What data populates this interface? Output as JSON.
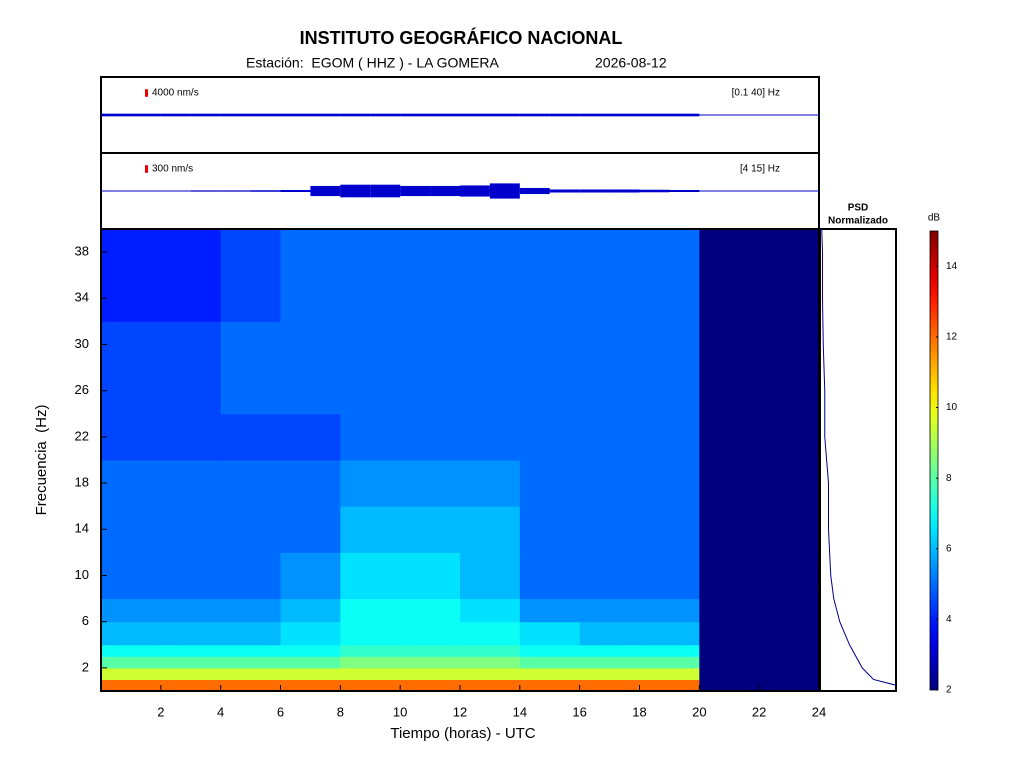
{
  "title": "INSTITUTO GEOGRÁFICO NACIONAL",
  "station": "Estación:  EGOM ( HHZ ) - LA GOMERA",
  "date": "2026-08-12",
  "chart_data": [
    {
      "type": "trace",
      "scale": {
        "value": 4000,
        "label": "4000 nm/s"
      },
      "filter": "[0.1 40] Hz",
      "color": "#0000cc",
      "xlim": [
        0,
        24
      ],
      "ylim": [
        -20000,
        20000
      ],
      "x": [
        0,
        1,
        2,
        3,
        4,
        5,
        6,
        7,
        8,
        9,
        10,
        11,
        12,
        13,
        14,
        15,
        16,
        17,
        18,
        19
      ],
      "values": [
        700,
        700,
        700,
        700,
        700,
        700,
        700,
        700,
        700,
        700,
        700,
        700,
        700,
        700,
        700,
        700,
        700,
        700,
        700,
        700
      ]
    },
    {
      "type": "trace",
      "scale": {
        "value": 300,
        "label": "300 nm/s"
      },
      "filter": "[4 15] Hz",
      "color": "#0000cc",
      "xlim": [
        0,
        24
      ],
      "ylim": [
        -1500,
        1500
      ],
      "x": [
        0,
        1,
        2,
        3,
        4,
        5,
        6,
        7,
        8,
        9,
        10,
        11,
        12,
        13,
        14,
        15,
        16,
        17,
        18,
        19
      ],
      "values": [
        20,
        20,
        20,
        25,
        25,
        30,
        40,
        200,
        250,
        250,
        200,
        200,
        220,
        300,
        120,
        60,
        60,
        60,
        50,
        40
      ]
    },
    {
      "type": "heatmap",
      "xlabel": "Tiempo (horas) - UTC",
      "ylabel": "Frecuencia  (Hz)",
      "xlim": [
        0,
        24
      ],
      "xticks": [
        2,
        4,
        6,
        8,
        10,
        12,
        14,
        16,
        18,
        20,
        22,
        24
      ],
      "ylim": [
        0,
        40
      ],
      "yticks": [
        2,
        6,
        10,
        14,
        18,
        22,
        26,
        30,
        34,
        38
      ],
      "colormap": "jet",
      "missing_color": "#00007f",
      "x_bins": [
        0,
        2,
        4,
        6,
        8,
        10,
        12,
        14,
        16,
        18,
        20,
        22,
        24
      ],
      "y_bins": [
        0,
        1,
        2,
        3,
        4,
        6,
        8,
        12,
        16,
        20,
        24,
        32,
        40
      ],
      "values": [
        [
          12,
          12,
          12,
          12,
          12,
          12,
          12,
          12,
          12,
          12,
          null,
          null
        ],
        [
          9.5,
          9.5,
          9.5,
          9.5,
          9.5,
          9.5,
          9.5,
          9.5,
          9.5,
          9.5,
          null,
          null
        ],
        [
          8,
          8,
          8,
          8,
          8.5,
          8.5,
          8.5,
          8,
          8,
          8,
          null,
          null
        ],
        [
          7,
          7,
          7,
          7,
          7.5,
          7.5,
          7.5,
          7,
          7,
          7,
          null,
          null
        ],
        [
          6,
          6,
          6,
          6.5,
          7,
          7,
          7,
          6.5,
          6,
          6,
          null,
          null
        ],
        [
          5.5,
          5.5,
          5.5,
          6,
          7,
          7,
          6.5,
          5.5,
          5.5,
          5.5,
          null,
          null
        ],
        [
          5,
          5,
          5,
          5.5,
          6.5,
          6.5,
          6,
          5,
          5,
          5,
          null,
          null
        ],
        [
          5,
          5,
          5,
          5,
          6,
          6,
          6,
          5,
          5,
          5,
          null,
          null
        ],
        [
          5,
          5,
          5,
          5,
          5.5,
          5.5,
          5.5,
          5,
          5,
          5,
          null,
          null
        ],
        [
          4.5,
          4.5,
          4.5,
          4.5,
          5,
          5,
          5,
          5,
          5,
          5,
          null,
          null
        ],
        [
          4.5,
          4.5,
          5,
          5,
          5,
          5,
          5,
          5,
          5,
          5,
          null,
          null
        ],
        [
          4,
          4,
          4.5,
          5,
          5,
          5,
          5,
          5,
          5,
          5,
          null,
          null
        ]
      ]
    },
    {
      "type": "line",
      "title": "PSD",
      "subtitle": "Normalizado",
      "color": "#00008b",
      "xlim": [
        0,
        1
      ],
      "ylim": [
        0,
        40
      ],
      "y": [
        0.5,
        1,
        2,
        4,
        6,
        8,
        10,
        14,
        18,
        22,
        26,
        30,
        34,
        38,
        40
      ],
      "values": [
        1.0,
        0.7,
        0.55,
        0.38,
        0.25,
        0.17,
        0.13,
        0.1,
        0.1,
        0.05,
        0.05,
        0.03,
        0.02,
        0.02,
        0.01
      ]
    },
    {
      "type": "colorbar",
      "label": "dB",
      "ylim": [
        2,
        15
      ],
      "yticks": [
        2,
        4,
        6,
        8,
        10,
        12,
        14
      ]
    }
  ]
}
